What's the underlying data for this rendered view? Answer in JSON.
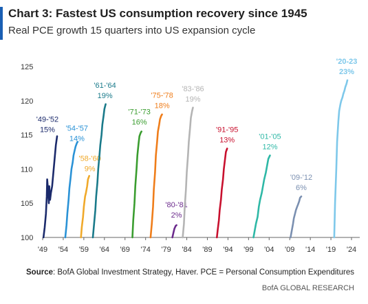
{
  "header": {
    "title": "Chart 3: Fastest US consumption recovery since 1945",
    "subtitle": "Real PCE growth 15 quarters into US expansion cycle",
    "accent_color": "#1a5fb4"
  },
  "footer": {
    "source_label": "Source",
    "source_text": ": BofA Global Investment Strategy, Haver. PCE = Personal Consumption Expenditures",
    "brand": "BofA GLOBAL RESEARCH"
  },
  "chart_data": {
    "type": "line",
    "xlim": [
      1949,
      2026
    ],
    "ylim": [
      100,
      125
    ],
    "x_ticks": [
      {
        "label": "'49",
        "value": 1949
      },
      {
        "label": "'54",
        "value": 1954
      },
      {
        "label": "'59",
        "value": 1959
      },
      {
        "label": "'64",
        "value": 1964
      },
      {
        "label": "'69",
        "value": 1969
      },
      {
        "label": "'74",
        "value": 1974
      },
      {
        "label": "'79",
        "value": 1979
      },
      {
        "label": "'84",
        "value": 1984
      },
      {
        "label": "'89",
        "value": 1989
      },
      {
        "label": "'94",
        "value": 1994
      },
      {
        "label": "'99",
        "value": 1999
      },
      {
        "label": "'04",
        "value": 2004
      },
      {
        "label": "'09",
        "value": 2009
      },
      {
        "label": "'14",
        "value": 2014
      },
      {
        "label": "'19",
        "value": 2019
      },
      {
        "label": "'24",
        "value": 2024
      }
    ],
    "y_ticks": [
      100,
      105,
      110,
      115,
      120,
      125
    ],
    "grid": false,
    "series": [
      {
        "period": "'49-'52",
        "growth": "15%",
        "color": "#1b2a6b",
        "points": [
          [
            1949.2,
            100
          ],
          [
            1949.5,
            101.5
          ],
          [
            1949.8,
            103.5
          ],
          [
            1950.0,
            106
          ],
          [
            1950.1,
            108.5
          ],
          [
            1950.3,
            107
          ],
          [
            1950.5,
            105
          ],
          [
            1950.6,
            107.5
          ],
          [
            1950.8,
            105.5
          ],
          [
            1951.0,
            106.5
          ],
          [
            1951.3,
            107.5
          ],
          [
            1951.6,
            109.5
          ],
          [
            1951.9,
            111.5
          ],
          [
            1952.2,
            113.5
          ],
          [
            1952.5,
            114.8
          ]
        ]
      },
      {
        "period": "'54-'57",
        "growth": "14%",
        "color": "#2a92d6",
        "points": [
          [
            1954.5,
            100
          ],
          [
            1954.8,
            101.8
          ],
          [
            1955.0,
            103.5
          ],
          [
            1955.3,
            105.5
          ],
          [
            1955.5,
            107.2
          ],
          [
            1955.8,
            108.8
          ],
          [
            1956.0,
            110
          ],
          [
            1956.3,
            111
          ],
          [
            1956.5,
            112
          ],
          [
            1956.8,
            112.8
          ],
          [
            1957.0,
            113.3
          ],
          [
            1957.3,
            113.8
          ],
          [
            1957.5,
            114
          ]
        ]
      },
      {
        "period": "'58-'60",
        "growth": "9%",
        "color": "#f0a92a",
        "points": [
          [
            1958.3,
            100
          ],
          [
            1958.5,
            101.5
          ],
          [
            1958.8,
            103
          ],
          [
            1959.0,
            104.5
          ],
          [
            1959.3,
            106
          ],
          [
            1959.5,
            106.5
          ],
          [
            1959.8,
            107.5
          ],
          [
            1960.0,
            108.5
          ],
          [
            1960.3,
            109
          ]
        ]
      },
      {
        "period": "'61-'64",
        "growth": "19%",
        "color": "#1a7a8a",
        "points": [
          [
            1961.2,
            100
          ],
          [
            1961.5,
            102
          ],
          [
            1961.8,
            104
          ],
          [
            1962.0,
            106
          ],
          [
            1962.3,
            108
          ],
          [
            1962.5,
            110
          ],
          [
            1962.8,
            112
          ],
          [
            1963.0,
            113.5
          ],
          [
            1963.3,
            115
          ],
          [
            1963.5,
            116.5
          ],
          [
            1963.8,
            117.8
          ],
          [
            1964.0,
            118.8
          ],
          [
            1964.3,
            119.5
          ]
        ]
      },
      {
        "period": "'71-'73",
        "growth": "16%",
        "color": "#3a9d2f",
        "points": [
          [
            1970.8,
            100
          ],
          [
            1971.0,
            102.5
          ],
          [
            1971.3,
            105
          ],
          [
            1971.5,
            107.5
          ],
          [
            1971.8,
            110
          ],
          [
            1972.0,
            112
          ],
          [
            1972.3,
            113.8
          ],
          [
            1972.5,
            114.8
          ],
          [
            1972.8,
            115.3
          ],
          [
            1973.0,
            115.5
          ]
        ]
      },
      {
        "period": "'75-'78",
        "growth": "18%",
        "color": "#ef7d1a",
        "points": [
          [
            1975.2,
            100
          ],
          [
            1975.5,
            102
          ],
          [
            1975.8,
            104.5
          ],
          [
            1976.0,
            107
          ],
          [
            1976.3,
            109.5
          ],
          [
            1976.5,
            112
          ],
          [
            1976.8,
            114
          ],
          [
            1977.0,
            115.5
          ],
          [
            1977.3,
            116.5
          ],
          [
            1977.5,
            117.3
          ],
          [
            1977.8,
            117.8
          ],
          [
            1978.0,
            118
          ]
        ]
      },
      {
        "period": "'80-'81",
        "growth": "2%",
        "color": "#6b2a8c",
        "points": [
          [
            1980.5,
            100
          ],
          [
            1980.8,
            100.8
          ],
          [
            1981.0,
            101.3
          ],
          [
            1981.3,
            101.7
          ],
          [
            1981.5,
            101.8
          ]
        ]
      },
      {
        "period": "'83-'86",
        "growth": "19%",
        "color": "#b4b4b4",
        "points": [
          [
            1983.0,
            100
          ],
          [
            1983.3,
            102
          ],
          [
            1983.5,
            104.5
          ],
          [
            1983.8,
            107
          ],
          [
            1984.0,
            109.5
          ],
          [
            1984.3,
            112
          ],
          [
            1984.5,
            114
          ],
          [
            1984.8,
            116
          ],
          [
            1985.0,
            117.5
          ],
          [
            1985.3,
            118.5
          ],
          [
            1985.5,
            119
          ]
        ]
      },
      {
        "period": "'91-'95",
        "growth": "13%",
        "color": "#c8102e",
        "points": [
          [
            1991.3,
            100
          ],
          [
            1991.5,
            101
          ],
          [
            1991.8,
            102.5
          ],
          [
            1992.0,
            104
          ],
          [
            1992.3,
            105.5
          ],
          [
            1992.5,
            107
          ],
          [
            1992.8,
            108.5
          ],
          [
            1993.0,
            110
          ],
          [
            1993.3,
            111.5
          ],
          [
            1993.5,
            112.5
          ],
          [
            1993.8,
            113
          ]
        ]
      },
      {
        "period": "'01-'05",
        "growth": "12%",
        "color": "#2eb8a6",
        "points": [
          [
            2000.2,
            100
          ],
          [
            2000.5,
            101
          ],
          [
            2000.8,
            102
          ],
          [
            2001.2,
            103
          ],
          [
            2001.5,
            104.5
          ],
          [
            2001.8,
            105.5
          ],
          [
            2002.2,
            106.5
          ],
          [
            2002.5,
            107.5
          ],
          [
            2002.8,
            108.5
          ],
          [
            2003.2,
            109.5
          ],
          [
            2003.5,
            110.5
          ],
          [
            2003.8,
            111.5
          ],
          [
            2004.2,
            112
          ]
        ]
      },
      {
        "period": "'09-'12",
        "growth": "6%",
        "color": "#7a8fb0",
        "points": [
          [
            2009.2,
            100
          ],
          [
            2009.5,
            101
          ],
          [
            2009.8,
            102
          ],
          [
            2010.0,
            102.8
          ],
          [
            2010.3,
            103.5
          ],
          [
            2010.5,
            104
          ],
          [
            2010.8,
            104.5
          ],
          [
            2011.0,
            104.8
          ],
          [
            2011.3,
            105.3
          ],
          [
            2011.5,
            105.8
          ],
          [
            2011.8,
            106
          ]
        ]
      },
      {
        "period": "'20-23",
        "growth": "23%",
        "color": "#7ec8ea",
        "points": [
          [
            2019.8,
            100
          ],
          [
            2020.0,
            105
          ],
          [
            2020.3,
            110
          ],
          [
            2020.5,
            114
          ],
          [
            2020.8,
            117
          ],
          [
            2021.0,
            118.5
          ],
          [
            2021.3,
            119.5
          ],
          [
            2021.5,
            120
          ],
          [
            2021.8,
            120.5
          ],
          [
            2022.0,
            121
          ],
          [
            2022.3,
            121.5
          ],
          [
            2022.5,
            122
          ],
          [
            2022.8,
            122.5
          ],
          [
            2023.0,
            123
          ]
        ]
      }
    ]
  }
}
